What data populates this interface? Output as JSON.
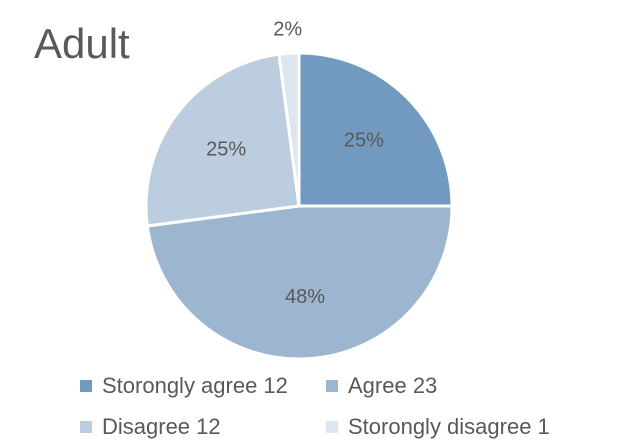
{
  "chart_data": {
    "type": "pie",
    "title": "Adult",
    "slices": [
      {
        "label": "Storongly agree 12",
        "value": 12,
        "percent_label": "25%",
        "color": "#7299c0"
      },
      {
        "label": "Agree 23",
        "value": 23,
        "percent_label": "48%",
        "color": "#9db6cf"
      },
      {
        "label": "Disagree 12",
        "value": 12,
        "percent_label": "25%",
        "color": "#bccddf"
      },
      {
        "label": "Storongly disagree 1",
        "value": 1,
        "percent_label": "2%",
        "color": "#dde5ee"
      }
    ],
    "legend_position": "bottom"
  }
}
